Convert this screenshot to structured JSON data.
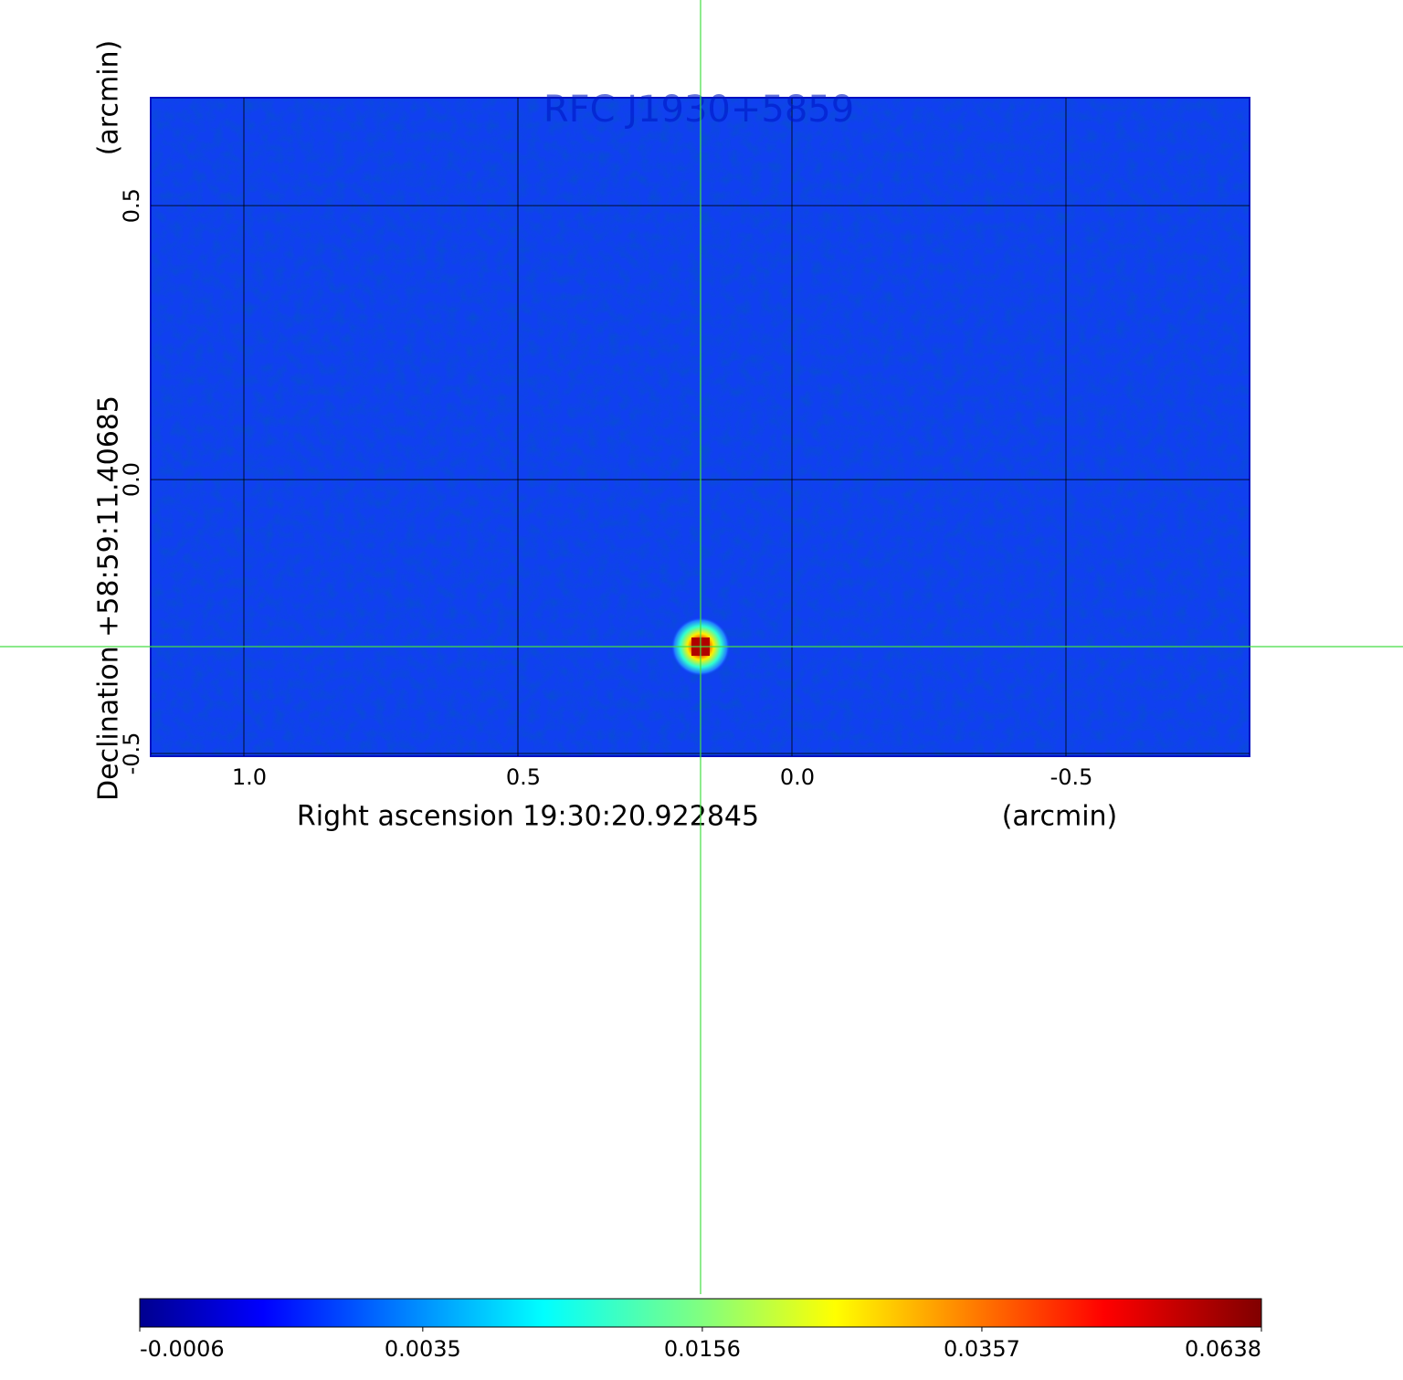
{
  "chart_data": {
    "type": "image",
    "title": "RFC J1930+5859",
    "xlabel": "Right ascension  19:30:20.922845",
    "xunit": "(arcmin)",
    "ylabel": "Declination  +58:59:11.40685",
    "yunit": "(arcmin)",
    "xlim": [
      1.17,
      -0.835
    ],
    "ylim": [
      -0.505,
      0.697
    ],
    "xticks": [
      {
        "value": 1,
        "label": "1.0"
      },
      0.5,
      {
        "value": 0,
        "label": "0.0"
      },
      -0.5
    ],
    "yticks": [
      -0.5,
      {
        "value": 0,
        "label": "0.0"
      },
      0.5
    ],
    "grid": true,
    "crosshair": {
      "x": 0.1667,
      "y": -0.305,
      "color": "#44dd44"
    },
    "colorbar": {
      "clim": [
        -0.0006,
        0.0638
      ],
      "scale": "sqrt",
      "colormap": "jet",
      "ticks": [
        -0.0006,
        0.0035,
        0.0156,
        0.0357,
        0.0638
      ]
    }
  }
}
